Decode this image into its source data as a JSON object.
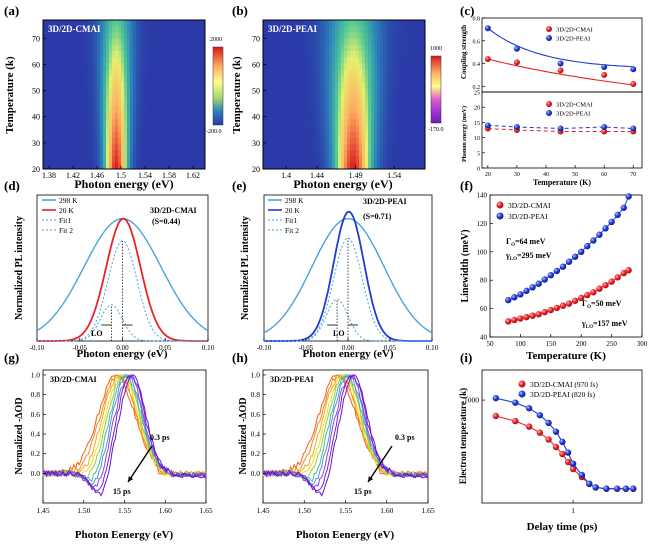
{
  "colors": {
    "red": "#e8232a",
    "blue": "#1f3cd4",
    "lightblue": "#4aa3df",
    "purple": "#7a1fd9",
    "orange": "#f08a1c",
    "green": "#9ccc3a"
  },
  "chart_data": [
    {
      "panel": "(a)",
      "type": "heatmap",
      "label": "3D/2D-CMAI",
      "xlabel": "Photon energy (eV)",
      "ylabel": "Temperature (k)",
      "xlim": [
        1.37,
        1.64
      ],
      "ylim": [
        20,
        77
      ],
      "xticks": [
        "1.38",
        "1.42",
        "1.46",
        "1.5",
        "1.54",
        "1.58",
        "1.62"
      ],
      "yticks": [
        "20",
        "30",
        "40",
        "50",
        "60",
        "70"
      ],
      "colorbar_labels": [
        "2000",
        "-200.0"
      ],
      "peak_center": 1.492
    },
    {
      "panel": "(b)",
      "type": "heatmap",
      "label": "3D/2D-PEAI",
      "xlabel": "Photon energy (eV)",
      "ylabel": "Temperature (k)",
      "xlim": [
        1.37,
        1.58
      ],
      "ylim": [
        20,
        77
      ],
      "xticks": [
        "1.4",
        "1.44",
        "1.49",
        "1.54"
      ],
      "yticks": [
        "20",
        "30",
        "40",
        "50",
        "60",
        "70"
      ],
      "colorbar_labels": [
        "1000",
        "-170.0"
      ],
      "peak_center": 1.487
    },
    {
      "panel": "(c)",
      "type": "scatter",
      "xlabel": "Temperature (K)",
      "ylabel_top": "Coupling strength",
      "ylabel_bottom": "Phonon energy (meV)",
      "xlim": [
        18,
        73
      ],
      "xticks": [
        "20",
        "30",
        "40",
        "50",
        "60",
        "70"
      ],
      "top": {
        "ylim": [
          0.15,
          0.8
        ],
        "yticks": [
          "0.2",
          "0.4",
          "0.6",
          "0.8"
        ],
        "legend": [
          "3D/2D-CMAI",
          "3D/2D-PEAI"
        ],
        "x": [
          20,
          30,
          45,
          60,
          70
        ],
        "series": [
          {
            "name": "3D/2D-CMAI",
            "values": [
              0.44,
              0.41,
              0.34,
              0.3,
              0.22
            ]
          },
          {
            "name": "3D/2D-PEAI",
            "values": [
              0.71,
              0.53,
              0.4,
              0.37,
              0.35
            ]
          }
        ]
      },
      "bottom": {
        "ylim": [
          0,
          25
        ],
        "yticks": [
          "0",
          "5",
          "10",
          "15",
          "20",
          "25"
        ],
        "legend": [
          "3D/2D-CMAI",
          "3D/2D-PEAI"
        ],
        "x": [
          20,
          30,
          45,
          60,
          70
        ],
        "series": [
          {
            "name": "3D/2D-CMAI",
            "values": [
              13,
              12.5,
              12,
              12,
              12
            ]
          },
          {
            "name": "3D/2D-PEAI",
            "values": [
              14,
              13.5,
              13,
              13.5,
              13
            ]
          }
        ]
      }
    },
    {
      "panel": "(d)",
      "type": "line",
      "xlabel": "Photon energy (eV)",
      "ylabel": "Normalized PL intensity",
      "xlim": [
        -0.1,
        0.1
      ],
      "xticks": [
        "-0.10",
        "-0.05",
        "0.00",
        "0.05",
        "0.10"
      ],
      "legend": [
        "298 K",
        "20 K",
        "Fit1",
        "Fit 2"
      ],
      "annotation_title": "3D/2D-CMAI",
      "annotation_sub": "(S=0.44)",
      "lo_label": "LO",
      "peaks": {
        "w298": 0.045,
        "w20": 0.02,
        "fit1_center": -0.013,
        "fit1_amp": 0.26,
        "fit2_center": 0.0,
        "fit2_amp": 0.72
      }
    },
    {
      "panel": "(e)",
      "type": "line",
      "xlabel": "Photon energy (eV)",
      "ylabel": "Normalized PL intensity",
      "xlim": [
        -0.1,
        0.1
      ],
      "xticks": [
        "-0.10",
        "-0.05",
        "0.00",
        "0.05",
        "0.10"
      ],
      "legend": [
        "298 K",
        "20 K",
        "Fit1",
        "Fit 2"
      ],
      "annotation_title": "3D/2D-PEAI",
      "annotation_sub": "(S=0.71)",
      "lo_label": "LO",
      "peaks": {
        "w298": 0.043,
        "w20": 0.018,
        "fit1_center": -0.013,
        "fit1_amp": 0.3,
        "fit2_center": 0.0,
        "fit2_amp": 0.74
      }
    },
    {
      "panel": "(f)",
      "type": "scatter",
      "xlabel": "Temperature (K)",
      "ylabel": "Linewidth (meV)",
      "xlim": [
        50,
        300
      ],
      "ylim": [
        40,
        140
      ],
      "xticks": [
        "50",
        "100",
        "150",
        "200",
        "250",
        "300"
      ],
      "yticks": [
        "40",
        "60",
        "80",
        "100",
        "120",
        "140"
      ],
      "legend": [
        "3D/2D-CMAI",
        "3D/2D-PEAI"
      ],
      "x": [
        80,
        90,
        100,
        110,
        120,
        130,
        140,
        150,
        160,
        170,
        180,
        190,
        200,
        210,
        220,
        230,
        240,
        250,
        260,
        270,
        278
      ],
      "series": [
        {
          "name": "3D/2D-CMAI",
          "values": [
            51,
            52,
            53,
            54,
            55,
            56,
            57.5,
            59,
            60.5,
            62,
            63.5,
            65.5,
            67.5,
            69.5,
            71.5,
            74,
            76.5,
            79,
            82,
            85,
            87
          ]
        },
        {
          "name": "3D/2D-PEAI",
          "values": [
            66,
            68,
            70,
            72.5,
            75,
            77.5,
            80.5,
            83.5,
            86.5,
            89.5,
            93,
            96.5,
            100,
            104,
            108,
            112,
            116.5,
            121,
            126,
            131,
            139
          ]
        }
      ],
      "annotations": [
        {
          "g": "Γ",
          "gs": "O",
          "val": "=64 meV"
        },
        {
          "g": "γ",
          "gs": "LO",
          "val": "=295 meV"
        },
        {
          "g": "Γ",
          "gs": "O",
          "val": "=50 meV"
        },
        {
          "g": "γ",
          "gs": "LO",
          "val": "=157 meV"
        }
      ]
    },
    {
      "panel": "(g)",
      "type": "line",
      "label": "3D/2D-CMAI",
      "xlabel": "Photon Eenergy (eV)",
      "ylabel": "Normalized -ΔOD",
      "xlim": [
        1.45,
        1.65
      ],
      "ylim": [
        -0.3,
        1.05
      ],
      "xticks": [
        "1.45",
        "1.50",
        "1.55",
        "1.60",
        "1.65"
      ],
      "yticks": [
        "0.0",
        "0.2",
        "0.4",
        "0.6",
        "0.8",
        "1.0"
      ],
      "arrow_start": "0.3 ps",
      "arrow_end": "15 ps",
      "center": 1.545
    },
    {
      "panel": "(h)",
      "type": "line",
      "label": "3D/2D-PEAI",
      "xlabel": "Photon Eenergy (eV)",
      "ylabel": "Normalized -ΔOD",
      "xlim": [
        1.45,
        1.65
      ],
      "ylim": [
        -0.3,
        1.05
      ],
      "xticks": [
        "1.45",
        "1.50",
        "1.55",
        "1.60",
        "1.65"
      ],
      "yticks": [
        "0.0",
        "0.2",
        "0.4",
        "0.6",
        "0.8",
        "1.0"
      ],
      "arrow_start": "0.3 ps",
      "arrow_end": "15 ps",
      "center": 1.545
    },
    {
      "panel": "(i)",
      "type": "scatter",
      "xlabel": "Delay time (ps)",
      "ylabel": "Electron temperature (k)",
      "yticks": [
        "1000"
      ],
      "xticks": [
        "1"
      ],
      "legend": [
        "3D/2D-CMAI (970 fs)",
        "3D/2D-PEAI (820 fs)"
      ],
      "x": [
        0.2,
        0.3,
        0.4,
        0.5,
        0.6,
        0.7,
        0.8,
        0.9,
        1.0,
        1.2,
        1.4,
        1.6,
        2.0,
        2.5,
        3.0,
        3.5
      ],
      "series": [
        {
          "name": "3D/2D-CMAI (970 fs)",
          "values": [
            780,
            720,
            660,
            600,
            540,
            480,
            430,
            380,
            340,
            300,
            270,
            255,
            250,
            250,
            250,
            250
          ]
        },
        {
          "name": "3D/2D-PEAI (820 fs)",
          "values": [
            1030,
            960,
            880,
            790,
            700,
            610,
            520,
            440,
            370,
            310,
            270,
            255,
            250,
            250,
            250,
            250
          ]
        }
      ]
    }
  ]
}
